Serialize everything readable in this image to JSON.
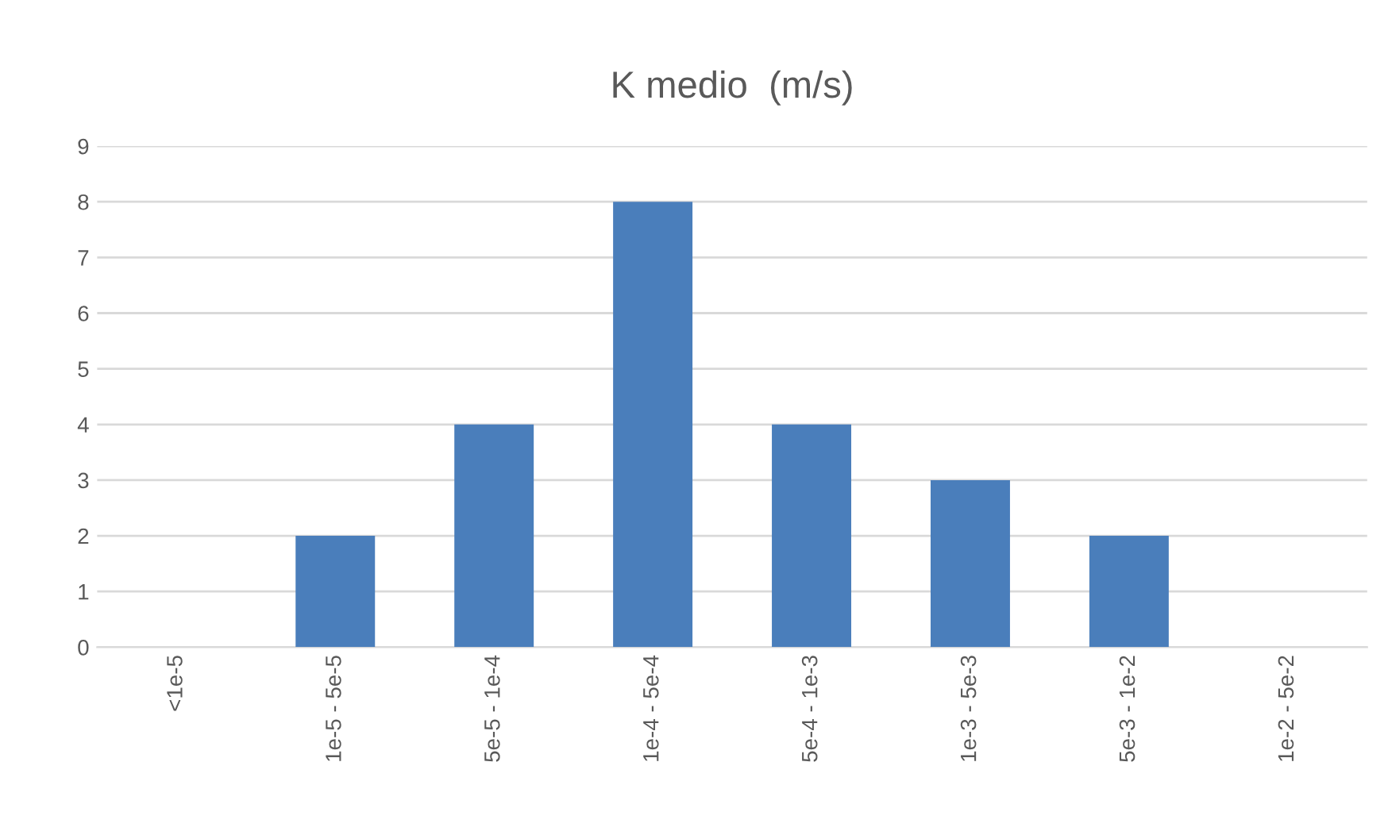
{
  "chart_data": {
    "type": "bar",
    "title": "K medio  (m/s)",
    "categories": [
      "<1e-5",
      "1e-5 - 5e-5",
      "5e-5 - 1e-4",
      "1e-4 - 5e-4",
      "5e-4 - 1e-3",
      "1e-3 - 5e-3",
      "5e-3 - 1e-2",
      "1e-2 - 5e-2"
    ],
    "values": [
      0,
      2,
      4,
      8,
      4,
      3,
      2,
      0
    ],
    "color": "#4a7ebb",
    "ylim": [
      0,
      9
    ],
    "yticks": [
      0,
      1,
      2,
      3,
      4,
      5,
      6,
      7,
      8,
      9
    ],
    "grid": "y"
  }
}
